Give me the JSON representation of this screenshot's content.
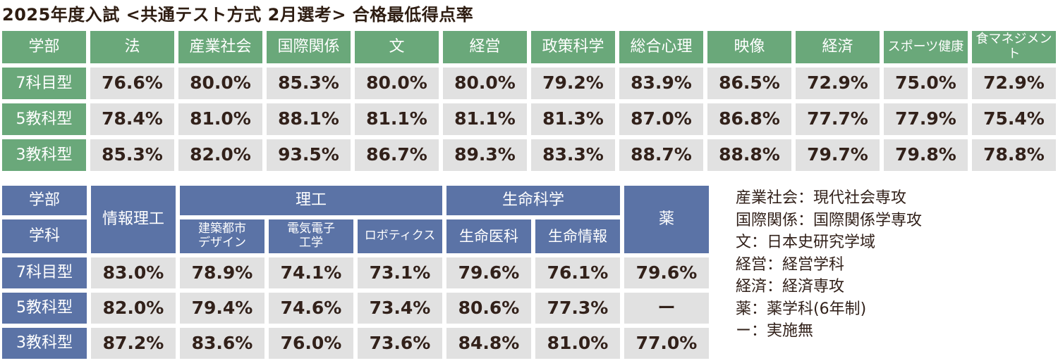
{
  "title": "2025年度入試 <共通テスト方式 2月選考> 合格最低得点率",
  "colors": {
    "header_green": "#6aa87a",
    "header_blue": "#5b73a6",
    "cell_gray": "#e1e1e1",
    "text_dark": "#32211a"
  },
  "chart_data": [
    {
      "type": "table",
      "header": [
        "学部",
        "法",
        "産業社会",
        "国際関係",
        "文",
        "経営",
        "政策科学",
        "総合心理",
        "映像",
        "経済",
        "スポーツ健康",
        "食マネジメント"
      ],
      "rows": [
        {
          "label": "7科目型",
          "values": [
            "76.6%",
            "80.0%",
            "85.3%",
            "80.0%",
            "80.0%",
            "79.2%",
            "83.9%",
            "86.5%",
            "72.9%",
            "75.0%",
            "72.9%"
          ]
        },
        {
          "label": "5教科型",
          "values": [
            "78.4%",
            "81.0%",
            "88.1%",
            "81.1%",
            "81.1%",
            "81.3%",
            "87.0%",
            "86.8%",
            "77.7%",
            "77.9%",
            "75.4%"
          ]
        },
        {
          "label": "3教科型",
          "values": [
            "85.3%",
            "82.0%",
            "93.5%",
            "86.7%",
            "89.3%",
            "83.3%",
            "88.7%",
            "88.8%",
            "79.7%",
            "79.8%",
            "78.8%"
          ]
        }
      ]
    },
    {
      "type": "table",
      "header": {
        "corner_row1": "学部",
        "corner_row2": "学科",
        "joho_riko": "情報理工",
        "riko_group": "理工",
        "riko_subs": [
          [
            "建築都市",
            "デザイン"
          ],
          [
            "電気電子",
            "工学"
          ],
          [
            "ロボティクス"
          ]
        ],
        "seimei_group": "生命科学",
        "seimei_subs": [
          "生命医科",
          "生命情報"
        ],
        "yaku": "薬"
      },
      "rows": [
        {
          "label": "7科目型",
          "values": [
            "83.0%",
            "78.9%",
            "74.1%",
            "73.1%",
            "79.6%",
            "76.1%",
            "79.6%"
          ]
        },
        {
          "label": "5教科型",
          "values": [
            "82.0%",
            "79.4%",
            "74.6%",
            "73.4%",
            "80.6%",
            "77.3%",
            "ー"
          ]
        },
        {
          "label": "3教科型",
          "values": [
            "87.2%",
            "83.6%",
            "76.0%",
            "73.6%",
            "84.8%",
            "81.0%",
            "77.0%"
          ]
        }
      ]
    }
  ],
  "notes": [
    "産業社会：現代社会専攻",
    "国際関係：国際関係学専攻",
    "文：日本史研究学域",
    "経営：経営学科",
    "経済：経済専攻",
    "薬：薬学科(6年制)",
    "ー：実施無"
  ]
}
